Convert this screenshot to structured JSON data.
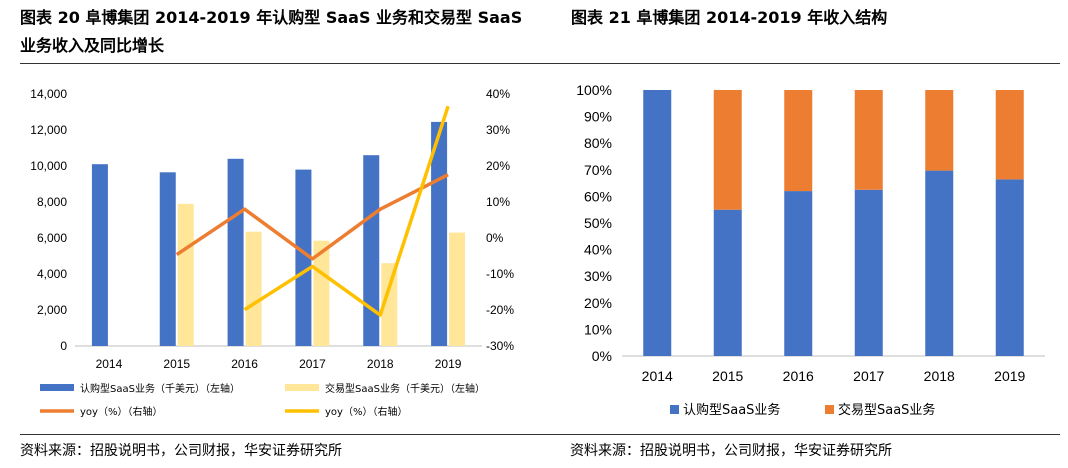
{
  "titles": {
    "left": "图表 20 阜博集团 2014-2019 年认购型 SaaS 业务和交易型 SaaS 业务收入及同比增长",
    "right": "图表 21 阜博集团 2014-2019 年收入结构"
  },
  "sources": {
    "left": "资料来源：招股说明书，公司财报，华安证券研究所",
    "right": "资料来源：招股说明书，公司财报，华安证券研究所"
  },
  "colors": {
    "subscription": "#4472C4",
    "transaction": "#FFE699",
    "yoy_sub": "#ED7D31",
    "yoy_txn": "#FFC000",
    "struct_txn": "#ED7D31"
  },
  "chart_data": [
    {
      "type": "bar",
      "categories": [
        "2014",
        "2015",
        "2016",
        "2017",
        "2018",
        "2019"
      ],
      "left_axis": {
        "ylim": [
          0,
          14000
        ],
        "ticks": [
          "0",
          "2,000",
          "4,000",
          "6,000",
          "8,000",
          "10,000",
          "12,000",
          "14,000"
        ]
      },
      "right_axis": {
        "ylim": [
          -30,
          40
        ],
        "ticks": [
          "-30%",
          "-20%",
          "-10%",
          "0%",
          "10%",
          "20%",
          "30%",
          "40%"
        ]
      },
      "series": [
        {
          "name": "认购型SaaS业务（千美元）（左轴）",
          "type": "bar",
          "axis": "left",
          "values": [
            10100,
            9650,
            10400,
            9800,
            10600,
            12450
          ]
        },
        {
          "name": "交易型SaaS业务（千美元）（左轴）",
          "type": "bar",
          "axis": "left",
          "values": [
            null,
            7900,
            6350,
            5850,
            4600,
            6300
          ]
        },
        {
          "name": "yoy（%）（右轴）",
          "type": "line",
          "axis": "right",
          "values": [
            null,
            -4.6,
            8,
            -5.8,
            8,
            17.6
          ]
        },
        {
          "name": "yoy（%）（右轴）",
          "type": "line",
          "axis": "right",
          "values": [
            null,
            null,
            -19.9,
            -7.9,
            -21.4,
            36.6
          ]
        }
      ],
      "legend_position": "bottom"
    },
    {
      "type": "bar",
      "stacked": true,
      "categories": [
        "2014",
        "2015",
        "2016",
        "2017",
        "2018",
        "2019"
      ],
      "ylim": [
        0,
        100
      ],
      "ticks": [
        "0%",
        "10%",
        "20%",
        "30%",
        "40%",
        "50%",
        "60%",
        "70%",
        "80%",
        "90%",
        "100%"
      ],
      "series": [
        {
          "name": "认购型SaaS业务",
          "values": [
            100,
            55,
            62,
            62.5,
            69.7,
            66.4
          ]
        },
        {
          "name": "交易型SaaS业务",
          "values": [
            0,
            45,
            38,
            37.5,
            30.3,
            33.6
          ]
        }
      ],
      "legend_position": "bottom"
    }
  ]
}
